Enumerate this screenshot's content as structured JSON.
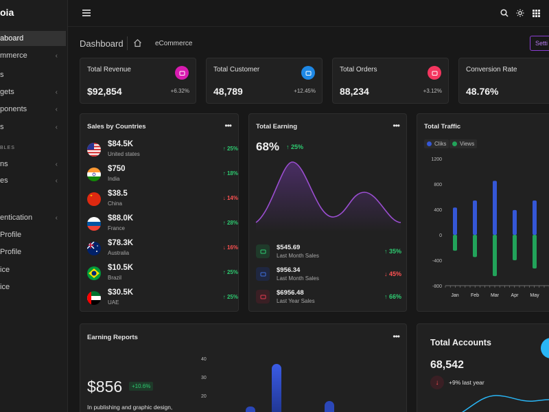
{
  "sidebar": {
    "brand": "oia",
    "items": [
      {
        "label": "aboard",
        "top": 45,
        "active": true,
        "chevron": false
      },
      {
        "label": "mmerce",
        "top": 70,
        "chevron": true
      },
      {
        "label": "s",
        "top": 98,
        "chevron": false
      },
      {
        "label": "gets",
        "top": 123,
        "chevron": true
      },
      {
        "label": "ponents",
        "top": 148,
        "chevron": true
      },
      {
        "label": "s",
        "top": 174,
        "chevron": true
      },
      {
        "label": "ns",
        "top": 228,
        "chevron": true
      },
      {
        "label": "es",
        "top": 252,
        "chevron": true
      },
      {
        "label": "entication",
        "top": 306,
        "chevron": true
      },
      {
        "label": "Profile",
        "top": 331,
        "chevron": false
      },
      {
        "label": "Profile",
        "top": 356,
        "chevron": false
      },
      {
        "label": "ice",
        "top": 382,
        "chevron": false
      },
      {
        "label": "ice",
        "top": 407,
        "chevron": false
      }
    ],
    "section_label": "BLES"
  },
  "breadcrumb": {
    "title": "Dashboard",
    "sub": "eCommerce",
    "settings_label": "Setti"
  },
  "stats": [
    {
      "title": "Total Revenue",
      "value": "$92,854",
      "change": "+6.32%",
      "color": "#d81bb0",
      "icon": "wallet-icon"
    },
    {
      "title": "Total Customer",
      "value": "48,789",
      "change": "+12.45%",
      "color": "#1e88e5",
      "icon": "users-icon"
    },
    {
      "title": "Total Orders",
      "value": "88,234",
      "change": "+3.12%",
      "color": "#f4365f",
      "icon": "bag-icon"
    },
    {
      "title": "Conversion Rate",
      "value": "48.76%",
      "change": "",
      "color": "",
      "icon": ""
    }
  ],
  "sales_by_countries": {
    "title": "Sales by Countries",
    "rows": [
      {
        "amount": "$84.5K",
        "country": "United states",
        "pct": "25%",
        "dir": "up",
        "flag": "us"
      },
      {
        "amount": "$750",
        "country": "India",
        "pct": "18%",
        "dir": "up",
        "flag": "in"
      },
      {
        "amount": "$38.5",
        "country": "China",
        "pct": "14%",
        "dir": "down",
        "flag": "cn"
      },
      {
        "amount": "$88.0K",
        "country": "France",
        "pct": "28%",
        "dir": "up",
        "flag": "fr"
      },
      {
        "amount": "$78.3K",
        "country": "Australia",
        "pct": "16%",
        "dir": "down",
        "flag": "au"
      },
      {
        "amount": "$10.5K",
        "country": "Brazil",
        "pct": "25%",
        "dir": "up",
        "flag": "br"
      },
      {
        "amount": "$30.5K",
        "country": "UAE",
        "pct": "25%",
        "dir": "up",
        "flag": "ae"
      }
    ]
  },
  "total_earning": {
    "title": "Total Earning",
    "value": "68%",
    "change": "25%",
    "rows": [
      {
        "amount": "$545.69",
        "label": "Last Month Sales",
        "pct": "35%",
        "dir": "up",
        "color": "#2ecc71",
        "bg": "#1f3a2a"
      },
      {
        "amount": "$956.34",
        "label": "Last Month Sales",
        "pct": "45%",
        "dir": "down",
        "color": "#3f6fe0",
        "bg": "#1f2740"
      },
      {
        "amount": "$6956.48",
        "label": "Last Year Sales",
        "pct": "66%",
        "dir": "up",
        "color": "#e53950",
        "bg": "#3a1f24"
      }
    ]
  },
  "total_traffic": {
    "title": "Total Traffic",
    "legend": [
      "Cliks",
      "Views"
    ],
    "chart_data": {
      "type": "bar",
      "categories": [
        "Jan",
        "Feb",
        "Mar",
        "Apr",
        "May"
      ],
      "series": [
        {
          "name": "Cliks",
          "values": [
            430,
            540,
            850,
            390,
            540
          ],
          "color": "#3557d6"
        },
        {
          "name": "Views",
          "values": [
            -250,
            -350,
            -650,
            -400,
            -530
          ],
          "color": "#22a35a"
        }
      ],
      "y_ticks": [
        "1200",
        "800",
        "400",
        "0",
        "-400",
        "-800"
      ],
      "ylim": [
        -800,
        1200
      ]
    }
  },
  "earning_reports": {
    "title": "Earning Reports",
    "value": "$856",
    "badge": "+10.6%",
    "caption": "In publishing and graphic design,",
    "y_ticks": [
      "40",
      "30",
      "20"
    ]
  },
  "total_accounts": {
    "title": "Total Accounts",
    "value": "68,542",
    "caption": "+9% last year"
  }
}
